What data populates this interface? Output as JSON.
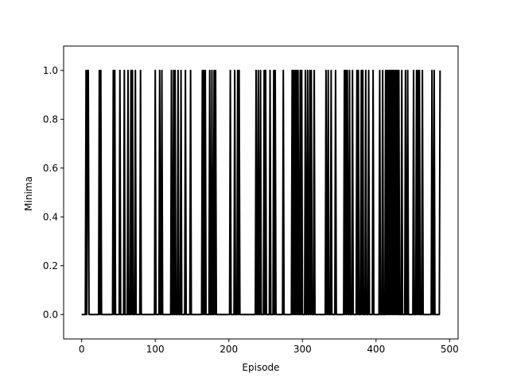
{
  "chart_data": {
    "type": "line",
    "title": "",
    "xlabel": "Episode",
    "ylabel": "Minima",
    "xlim": [
      -24.5,
      511.5
    ],
    "ylim": [
      -0.1,
      1.1
    ],
    "xticks": [
      0,
      100,
      200,
      300,
      400,
      500
    ],
    "yticks": [
      0.0,
      0.2,
      0.4,
      0.6,
      0.8,
      1.0
    ],
    "xtick_labels": [
      "0",
      "100",
      "200",
      "300",
      "400",
      "500"
    ],
    "ytick_labels": [
      "0.0",
      "0.2",
      "0.4",
      "0.6",
      "0.8",
      "1.0"
    ],
    "grid": false,
    "legend": "none",
    "line_color": "#000000",
    "series": [
      {
        "x_start": 0,
        "x_end": 487,
        "baseline": 0,
        "spike_value": 1,
        "one_episodes": [
          6,
          8,
          9,
          24,
          26,
          43,
          45,
          52,
          58,
          63,
          67,
          69,
          73,
          80,
          100,
          106,
          109,
          122,
          125,
          127,
          131,
          135,
          141,
          148,
          164,
          166,
          168,
          174,
          177,
          180,
          182,
          202,
          208,
          212,
          214,
          237,
          240,
          243,
          248,
          250,
          256,
          261,
          263,
          274,
          286,
          288,
          290,
          292,
          294,
          297,
          299,
          304,
          307,
          310,
          312,
          316,
          332,
          335,
          339,
          345,
          357,
          359,
          361,
          364,
          368,
          374,
          376,
          380,
          382,
          386,
          390,
          396,
          405,
          409,
          413,
          415,
          417,
          419,
          421,
          423,
          425,
          427,
          429,
          431,
          435,
          440,
          443,
          451,
          455,
          457,
          459,
          463,
          476,
          479,
          487
        ]
      }
    ]
  }
}
